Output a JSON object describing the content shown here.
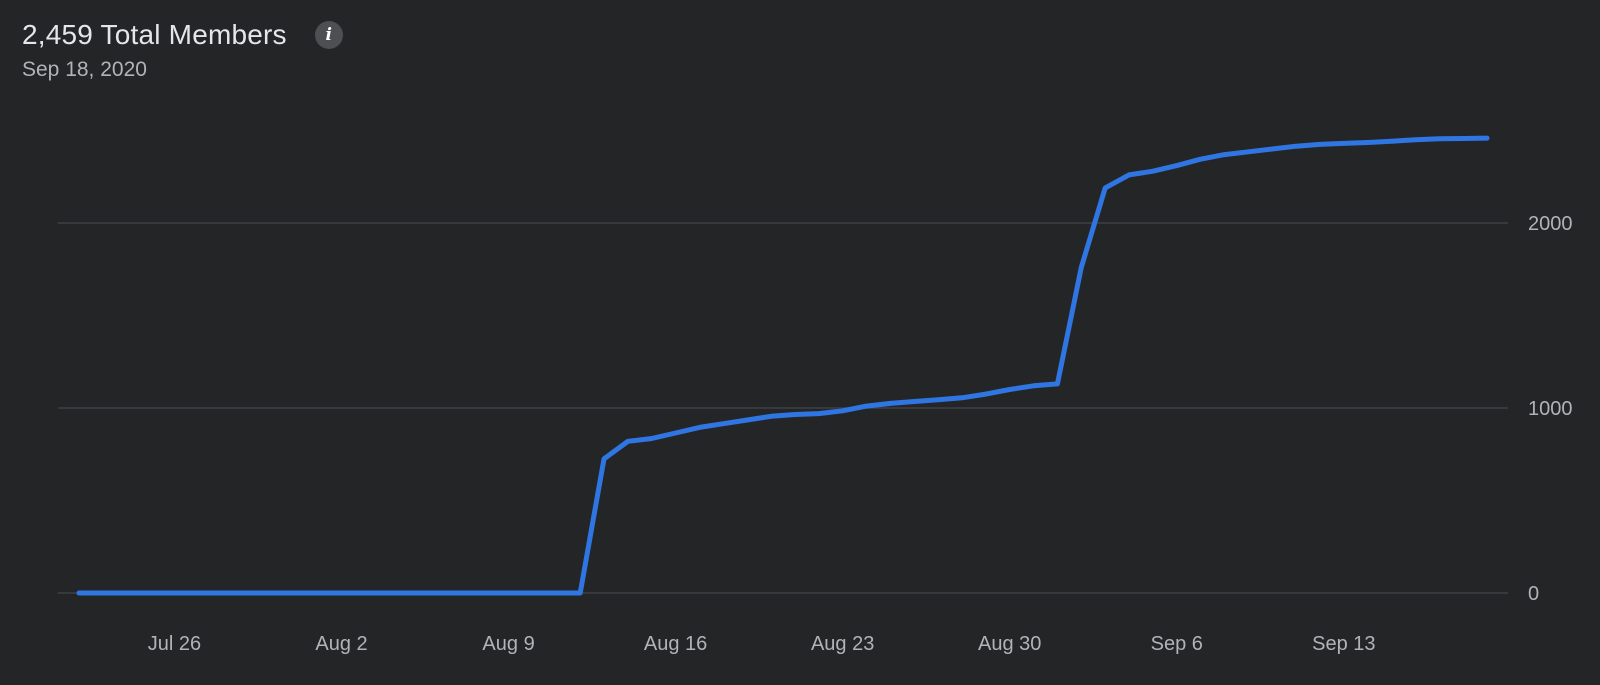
{
  "header": {
    "title": "2,459 Total Members",
    "date": "Sep 18, 2020",
    "info_icon": "info-icon"
  },
  "colors": {
    "background": "#242527",
    "line": "#2f76e3",
    "grid": "#3e4044",
    "text_primary": "#e4e6eb",
    "text_secondary": "#b0b3b8"
  },
  "chart_data": {
    "type": "line",
    "title": "2,459 Total Members",
    "subtitle": "Sep 18, 2020",
    "xlabel": "",
    "ylabel": "",
    "x_start": "Jul 22",
    "x_end": "Sep 18",
    "x_ticks": [
      {
        "day": 4,
        "label": "Jul 26"
      },
      {
        "day": 11,
        "label": "Aug 2"
      },
      {
        "day": 18,
        "label": "Aug 9"
      },
      {
        "day": 25,
        "label": "Aug 16"
      },
      {
        "day": 32,
        "label": "Aug 23"
      },
      {
        "day": 39,
        "label": "Aug 30"
      },
      {
        "day": 46,
        "label": "Sep 6"
      },
      {
        "day": 53,
        "label": "Sep 13"
      }
    ],
    "y_ticks": [
      0,
      1000,
      2000
    ],
    "ylim": [
      0,
      2500
    ],
    "y_axis_position": "right",
    "grid": true,
    "series": [
      {
        "values": [
          0,
          0,
          0,
          0,
          0,
          0,
          0,
          0,
          0,
          0,
          0,
          0,
          0,
          0,
          0,
          0,
          0,
          0,
          0,
          0,
          0,
          0,
          725,
          820,
          835,
          865,
          895,
          915,
          935,
          955,
          965,
          970,
          985,
          1010,
          1025,
          1035,
          1045,
          1055,
          1075,
          1100,
          1120,
          1130,
          1760,
          2190,
          2260,
          2280,
          2310,
          2345,
          2370,
          2385,
          2400,
          2415,
          2425,
          2430,
          2435,
          2442,
          2450,
          2455,
          2457,
          2459
        ]
      }
    ]
  }
}
